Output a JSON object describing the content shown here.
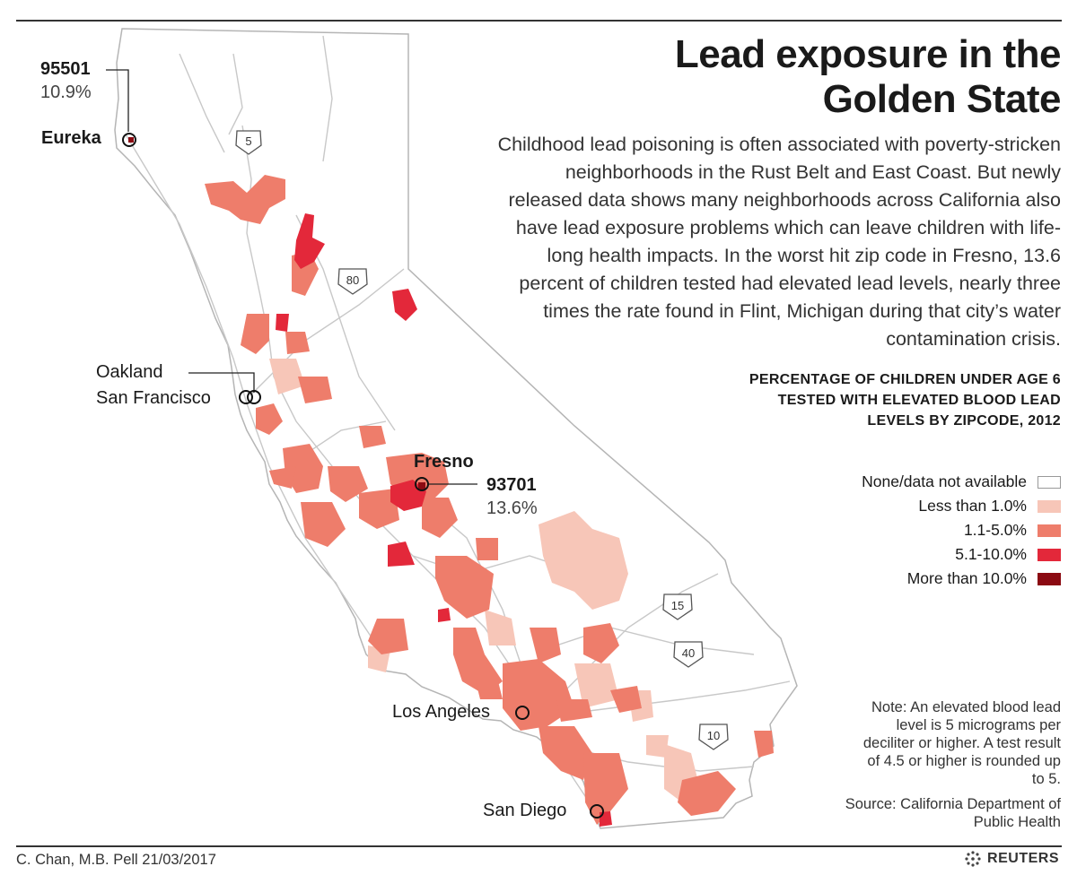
{
  "title": "Lead exposure in the Golden State",
  "intro": "Childhood lead poisoning is often associated with poverty-stricken neighborhoods in the Rust Belt and East Coast. But newly released data shows many neighborhoods across California also have lead exposure problems which can leave children with life-long health impacts. In the worst hit zip code in Fresno, 13.6 percent of children tested had elevated lead levels, nearly three times the rate found in Flint, Michigan during that city’s water contamination crisis.",
  "legend": {
    "title": "PERCENTAGE OF CHILDREN UNDER AGE 6 TESTED WITH ELEVATED BLOOD LEAD LEVELS BY ZIPCODE, 2012",
    "items": [
      {
        "label": "None/data not available",
        "color": "#ffffff"
      },
      {
        "label": "Less than 1.0%",
        "color": "#f7c6b8"
      },
      {
        "label": "1.1-5.0%",
        "color": "#ee7d6b"
      },
      {
        "label": "5.1-10.0%",
        "color": "#e3283a"
      },
      {
        "label": "More than 10.0%",
        "color": "#8b0a12"
      }
    ]
  },
  "callouts": {
    "eureka_zip": "95501",
    "eureka_pct": "10.9%",
    "fresno_zip": "93701",
    "fresno_pct": "13.6%"
  },
  "cities": {
    "eureka": "Eureka",
    "oakland": "Oakland",
    "san_francisco": "San Francisco",
    "fresno": "Fresno",
    "los_angeles": "Los Angeles",
    "san_diego": "San Diego"
  },
  "highways": [
    "5",
    "80",
    "15",
    "40",
    "10"
  ],
  "note": "Note: An elevated blood lead level is 5 micrograms per deciliter or higher. A test result of 4.5 or higher is rounded up to 5.",
  "source": "Source: California Department of Public Health",
  "credit": "C. Chan, M.B. Pell 21/03/2017",
  "logo": "REUTERS"
}
